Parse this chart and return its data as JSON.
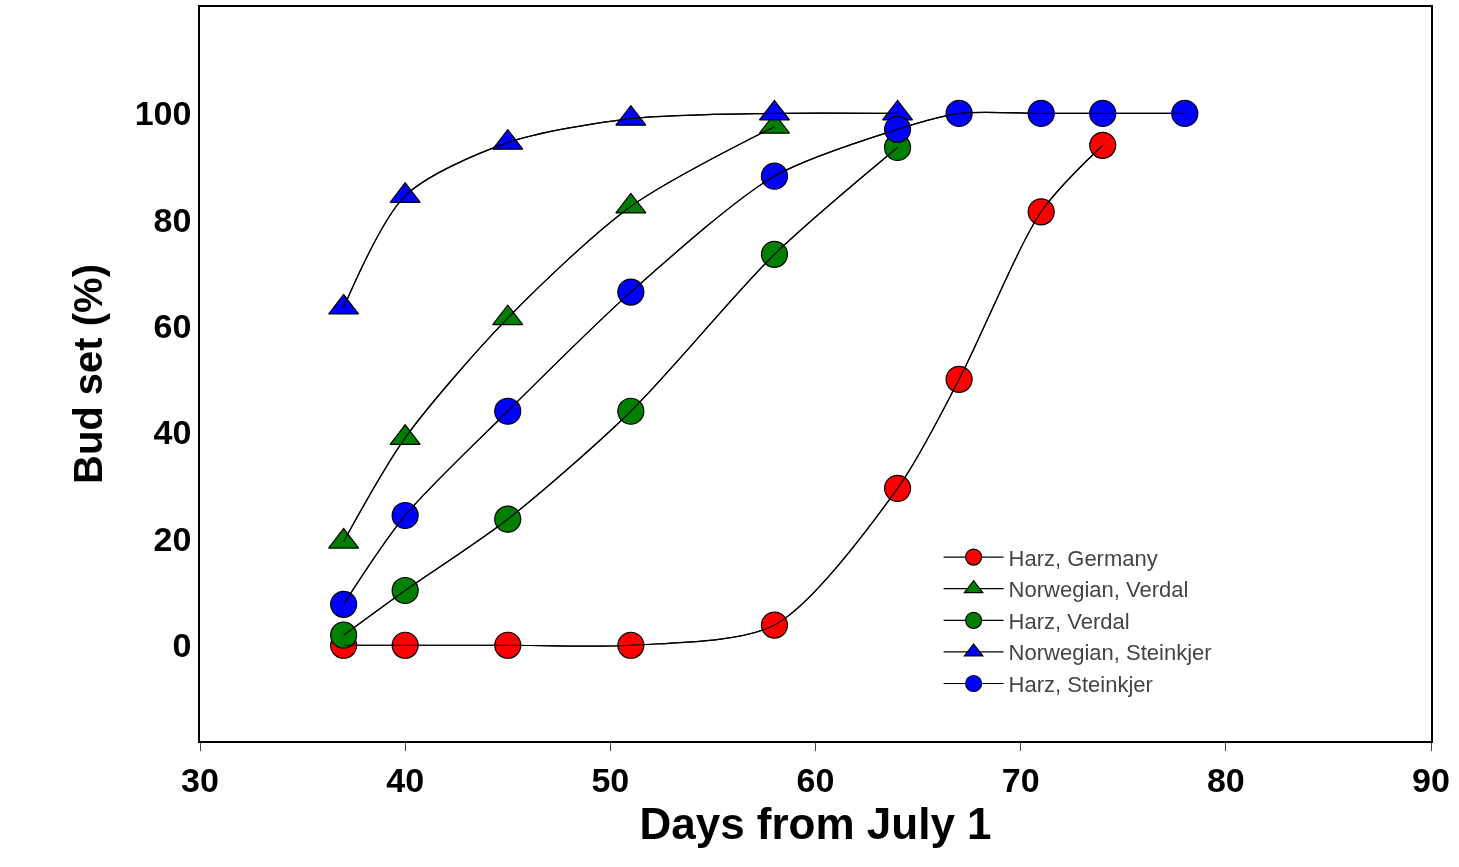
{
  "chart_data": {
    "type": "line",
    "xlabel": "Days from July 1",
    "ylabel": "Bud set (%)",
    "x": [
      37,
      40,
      45,
      51,
      58,
      64,
      67,
      71,
      74,
      78
    ],
    "series": [
      {
        "name": "Harz, Germany",
        "color": "#ff0000",
        "marker": "circle",
        "values": [
          0,
          0,
          0,
          0,
          3.8,
          29.5,
          50,
          81.5,
          94,
          null
        ]
      },
      {
        "name": "Norwegian, Verdal",
        "color": "#008000",
        "marker": "triangle",
        "values": [
          19.5,
          39,
          61.5,
          82.5,
          97.5,
          null,
          null,
          null,
          null,
          null
        ]
      },
      {
        "name": "Harz, Verdal",
        "color": "#008000",
        "marker": "circle",
        "values": [
          1.9,
          10.3,
          23.7,
          44,
          73.5,
          93.6,
          null,
          null,
          null,
          null
        ]
      },
      {
        "name": "Norwegian, Steinkjer",
        "color": "#0000ff",
        "marker": "triangle",
        "values": [
          63.5,
          84.5,
          94.5,
          99,
          100,
          100,
          null,
          null,
          null,
          null
        ]
      },
      {
        "name": "Harz, Steinkjer",
        "color": "#0000ff",
        "marker": "circle",
        "values": [
          7.7,
          24.4,
          44,
          66.4,
          88.2,
          97,
          100,
          100,
          100,
          100
        ]
      }
    ],
    "xlim": [
      30,
      90
    ],
    "xticks": [
      30,
      40,
      50,
      60,
      70,
      80,
      90
    ],
    "ylim": [
      -18,
      120
    ],
    "yticks": [
      0,
      20,
      40,
      60,
      80,
      100
    ],
    "grid": false,
    "legend": "bottom right",
    "line_style": "solid"
  }
}
